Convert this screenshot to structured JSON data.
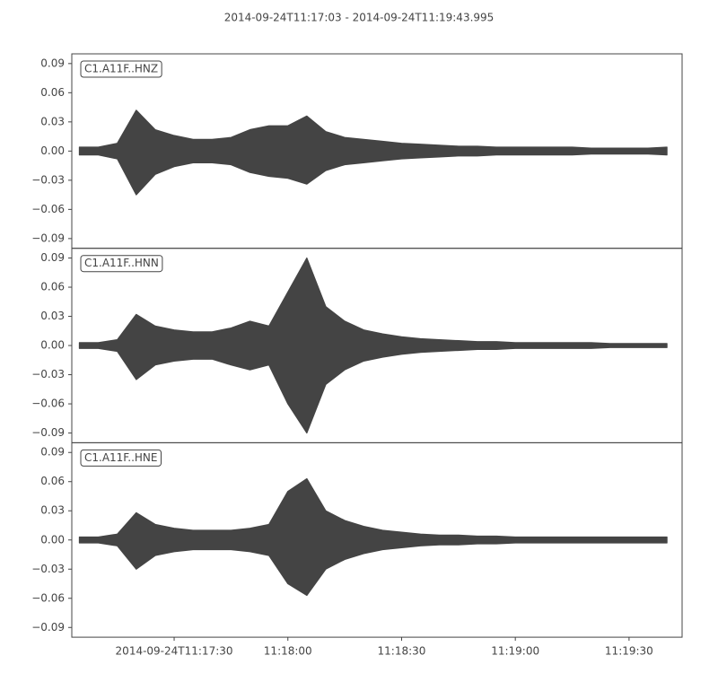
{
  "chart_data": [
    {
      "type": "envelope",
      "title": "2014-09-24T11:17:03  -  2014-09-24T11:19:43.995",
      "label": "C1.A11F..HNZ",
      "color": "#444444",
      "xlim": [
        "2014-09-24T11:17:03",
        "2014-09-24T11:19:43.995"
      ],
      "x": [
        "2014-09-24T11:17:05",
        "2014-09-24T11:17:10",
        "2014-09-24T11:17:15",
        "2014-09-24T11:17:20",
        "2014-09-24T11:17:25",
        "2014-09-24T11:17:30",
        "2014-09-24T11:17:35",
        "2014-09-24T11:17:40",
        "2014-09-24T11:17:45",
        "2014-09-24T11:17:50",
        "2014-09-24T11:17:55",
        "2014-09-24T11:18:00",
        "2014-09-24T11:18:05",
        "2014-09-24T11:18:10",
        "2014-09-24T11:18:15",
        "2014-09-24T11:18:20",
        "2014-09-24T11:18:25",
        "2014-09-24T11:18:30",
        "2014-09-24T11:18:35",
        "2014-09-24T11:18:40",
        "2014-09-24T11:18:45",
        "2014-09-24T11:18:50",
        "2014-09-24T11:18:55",
        "2014-09-24T11:19:00",
        "2014-09-24T11:19:05",
        "2014-09-24T11:19:10",
        "2014-09-24T11:19:15",
        "2014-09-24T11:19:20",
        "2014-09-24T11:19:25",
        "2014-09-24T11:19:30",
        "2014-09-24T11:19:35",
        "2014-09-24T11:19:40"
      ],
      "upper": [
        0.004,
        0.004,
        0.008,
        0.042,
        0.022,
        0.016,
        0.012,
        0.012,
        0.014,
        0.022,
        0.026,
        0.026,
        0.036,
        0.02,
        0.014,
        0.012,
        0.01,
        0.008,
        0.007,
        0.006,
        0.005,
        0.005,
        0.004,
        0.004,
        0.004,
        0.004,
        0.004,
        0.003,
        0.003,
        0.003,
        0.003,
        0.004
      ],
      "lower": [
        -0.004,
        -0.004,
        -0.008,
        -0.045,
        -0.024,
        -0.016,
        -0.012,
        -0.012,
        -0.014,
        -0.022,
        -0.026,
        -0.028,
        -0.034,
        -0.02,
        -0.014,
        -0.012,
        -0.01,
        -0.008,
        -0.007,
        -0.006,
        -0.005,
        -0.005,
        -0.004,
        -0.004,
        -0.004,
        -0.004,
        -0.004,
        -0.003,
        -0.003,
        -0.003,
        -0.003,
        -0.004
      ],
      "ylim": [
        -0.1,
        0.1
      ],
      "yticks": [
        {
          "value": -0.09,
          "label": "−0.09"
        },
        {
          "value": -0.06,
          "label": "−0.06"
        },
        {
          "value": -0.03,
          "label": "−0.03"
        },
        {
          "value": 0,
          "label": "0.00"
        },
        0.03,
        0.06,
        0.09
      ]
    },
    {
      "type": "envelope",
      "label": "C1.A11F..HNN",
      "color": "#444444",
      "xlim": [
        "2014-09-24T11:17:03",
        "2014-09-24T11:19:43.995"
      ],
      "x": [
        "2014-09-24T11:17:05",
        "2014-09-24T11:17:10",
        "2014-09-24T11:17:15",
        "2014-09-24T11:17:20",
        "2014-09-24T11:17:25",
        "2014-09-24T11:17:30",
        "2014-09-24T11:17:35",
        "2014-09-24T11:17:40",
        "2014-09-24T11:17:45",
        "2014-09-24T11:17:50",
        "2014-09-24T11:17:55",
        "2014-09-24T11:18:00",
        "2014-09-24T11:18:05",
        "2014-09-24T11:18:10",
        "2014-09-24T11:18:15",
        "2014-09-24T11:18:20",
        "2014-09-24T11:18:25",
        "2014-09-24T11:18:30",
        "2014-09-24T11:18:35",
        "2014-09-24T11:18:40",
        "2014-09-24T11:18:45",
        "2014-09-24T11:18:50",
        "2014-09-24T11:18:55",
        "2014-09-24T11:19:00",
        "2014-09-24T11:19:05",
        "2014-09-24T11:19:10",
        "2014-09-24T11:19:15",
        "2014-09-24T11:19:20",
        "2014-09-24T11:19:25",
        "2014-09-24T11:19:30",
        "2014-09-24T11:19:35",
        "2014-09-24T11:19:40"
      ],
      "upper": [
        0.003,
        0.003,
        0.006,
        0.032,
        0.02,
        0.016,
        0.014,
        0.014,
        0.018,
        0.025,
        0.02,
        0.055,
        0.09,
        0.04,
        0.025,
        0.016,
        0.012,
        0.009,
        0.007,
        0.006,
        0.005,
        0.004,
        0.004,
        0.003,
        0.003,
        0.003,
        0.003,
        0.003,
        0.002,
        0.002,
        0.002,
        0.002
      ],
      "lower": [
        -0.003,
        -0.003,
        -0.006,
        -0.035,
        -0.02,
        -0.016,
        -0.014,
        -0.014,
        -0.02,
        -0.025,
        -0.02,
        -0.06,
        -0.09,
        -0.04,
        -0.025,
        -0.016,
        -0.012,
        -0.009,
        -0.007,
        -0.006,
        -0.005,
        -0.004,
        -0.004,
        -0.003,
        -0.003,
        -0.003,
        -0.003,
        -0.003,
        -0.002,
        -0.002,
        -0.002,
        -0.002
      ],
      "ylim": [
        -0.1,
        0.1
      ],
      "yticks": [
        {
          "value": -0.09,
          "label": "−0.09"
        },
        {
          "value": -0.06,
          "label": "−0.06"
        },
        {
          "value": -0.03,
          "label": "−0.03"
        },
        {
          "value": 0,
          "label": "0.00"
        },
        0.03,
        0.06,
        0.09
      ]
    },
    {
      "type": "envelope",
      "label": "C1.A11F..HNE",
      "color": "#444444",
      "xlim": [
        "2014-09-24T11:17:03",
        "2014-09-24T11:19:43.995"
      ],
      "x": [
        "2014-09-24T11:17:05",
        "2014-09-24T11:17:10",
        "2014-09-24T11:17:15",
        "2014-09-24T11:17:20",
        "2014-09-24T11:17:25",
        "2014-09-24T11:17:30",
        "2014-09-24T11:17:35",
        "2014-09-24T11:17:40",
        "2014-09-24T11:17:45",
        "2014-09-24T11:17:50",
        "2014-09-24T11:17:55",
        "2014-09-24T11:18:00",
        "2014-09-24T11:18:05",
        "2014-09-24T11:18:10",
        "2014-09-24T11:18:15",
        "2014-09-24T11:18:20",
        "2014-09-24T11:18:25",
        "2014-09-24T11:18:30",
        "2014-09-24T11:18:35",
        "2014-09-24T11:18:40",
        "2014-09-24T11:18:45",
        "2014-09-24T11:18:50",
        "2014-09-24T11:18:55",
        "2014-09-24T11:19:00",
        "2014-09-24T11:19:05",
        "2014-09-24T11:19:10",
        "2014-09-24T11:19:15",
        "2014-09-24T11:19:20",
        "2014-09-24T11:19:25",
        "2014-09-24T11:19:30",
        "2014-09-24T11:19:35",
        "2014-09-24T11:19:40"
      ],
      "upper": [
        0.003,
        0.003,
        0.006,
        0.028,
        0.016,
        0.012,
        0.01,
        0.01,
        0.01,
        0.012,
        0.016,
        0.05,
        0.063,
        0.03,
        0.02,
        0.014,
        0.01,
        0.008,
        0.006,
        0.005,
        0.005,
        0.004,
        0.004,
        0.003,
        0.003,
        0.003,
        0.003,
        0.003,
        0.003,
        0.003,
        0.003,
        0.003
      ],
      "lower": [
        -0.003,
        -0.003,
        -0.006,
        -0.03,
        -0.016,
        -0.012,
        -0.01,
        -0.01,
        -0.01,
        -0.012,
        -0.016,
        -0.045,
        -0.057,
        -0.03,
        -0.02,
        -0.014,
        -0.01,
        -0.008,
        -0.006,
        -0.005,
        -0.005,
        -0.004,
        -0.004,
        -0.003,
        -0.003,
        -0.003,
        -0.003,
        -0.003,
        -0.003,
        -0.003,
        -0.003,
        -0.003
      ],
      "ylim": [
        -0.1,
        0.1
      ],
      "yticks": [
        {
          "value": -0.09,
          "label": "−0.09"
        },
        {
          "value": -0.06,
          "label": "−0.06"
        },
        {
          "value": -0.03,
          "label": "−0.03"
        },
        {
          "value": 0,
          "label": "0.00"
        },
        0.03,
        0.06,
        0.09
      ],
      "xticks": [
        "2014-09-24T11:17:30",
        {
          "value": "2014-09-24T11:18:00",
          "label": "11:18:00"
        },
        {
          "value": "2014-09-24T11:18:30",
          "label": "11:18:30"
        },
        {
          "value": "2014-09-24T11:19:00",
          "label": "11:19:00"
        },
        {
          "value": "2014-09-24T11:19:30",
          "label": "11:19:30"
        }
      ]
    }
  ]
}
